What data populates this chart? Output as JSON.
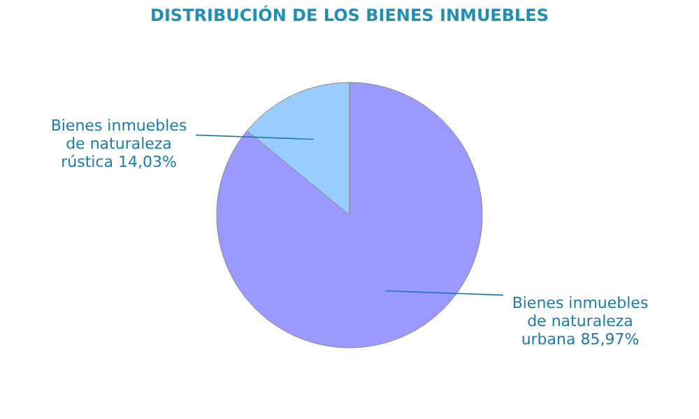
{
  "chart_data": {
    "type": "pie",
    "title": "DISTRIBUCIÓN DE LOS BIENES INMUEBLES",
    "categories": [
      "Bienes inmuebles de naturaleza urbana",
      "Bienes inmuebles de naturaleza rústica"
    ],
    "values": [
      85.97,
      14.03
    ],
    "value_labels": [
      "85,97%",
      "14,03%"
    ],
    "colors": [
      "#9999ff",
      "#99ccff"
    ]
  }
}
